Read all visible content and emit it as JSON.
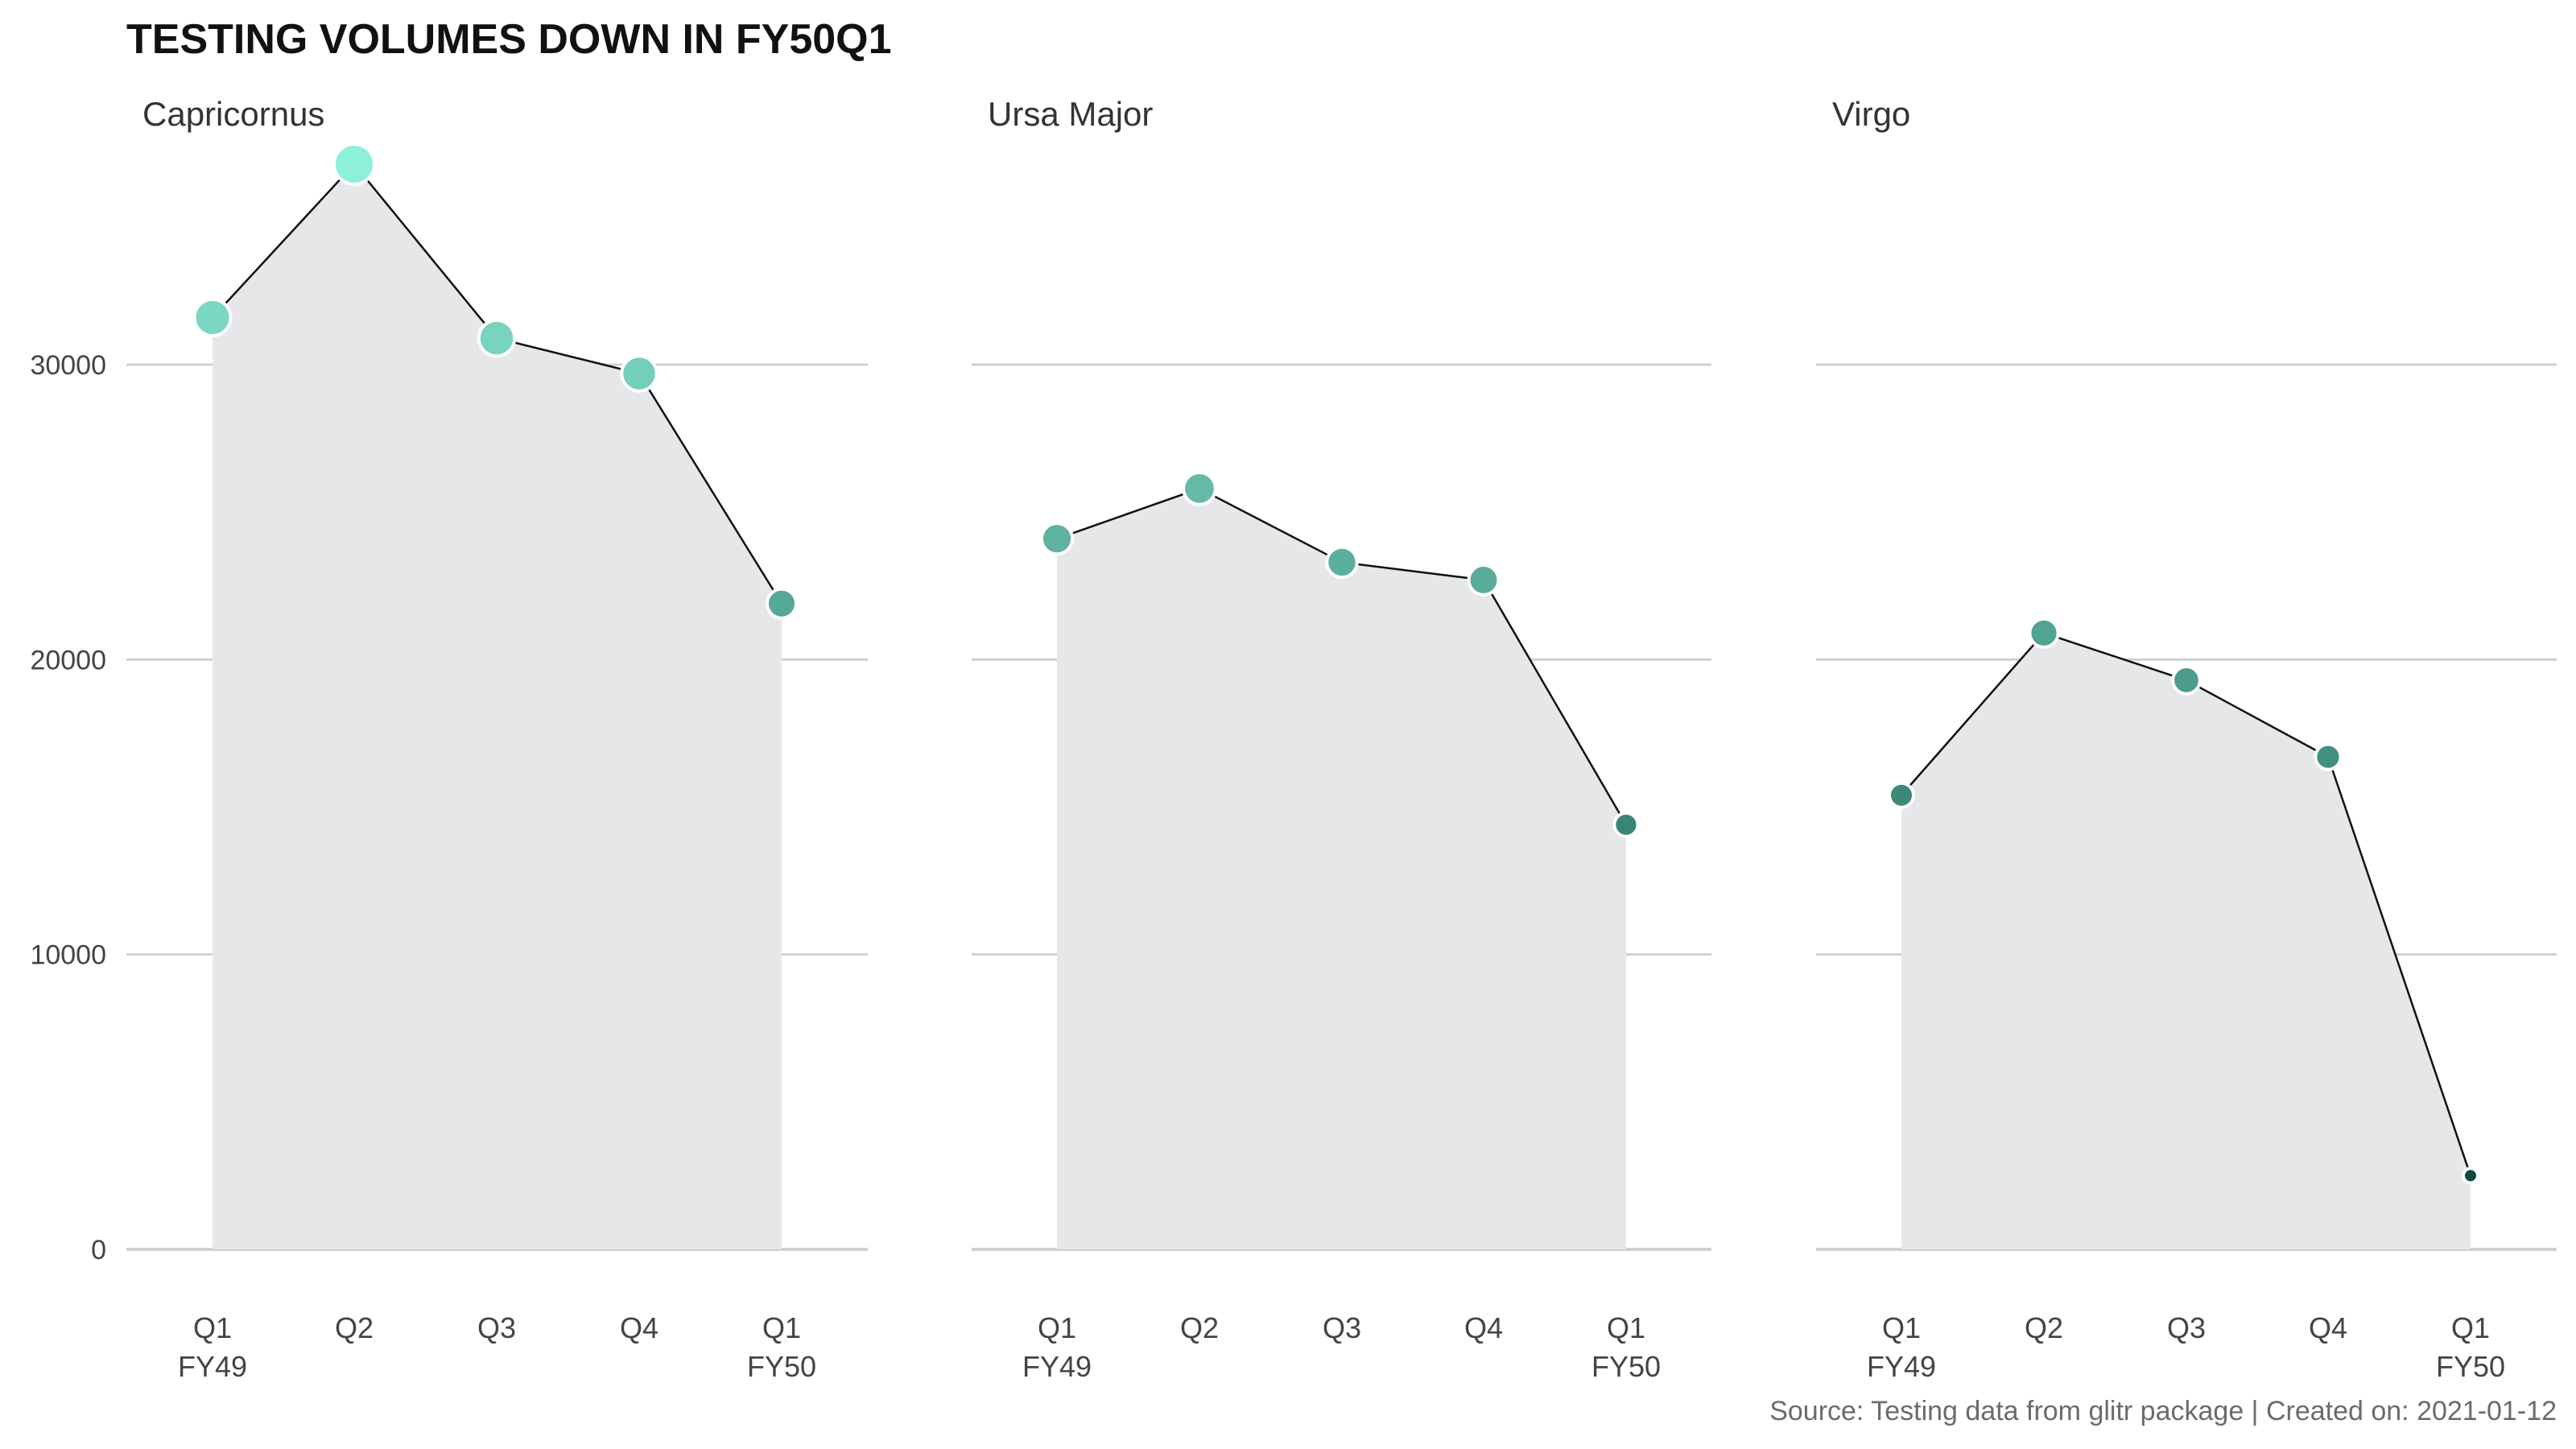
{
  "chart_data": {
    "type": "area",
    "title": "TESTING VOLUMES DOWN IN FY50Q1",
    "caption": "Source: Testing data from glitr package | Created on: 2021-01-12",
    "ylim": [
      0,
      38000
    ],
    "y_ticks": [
      0,
      10000,
      20000,
      30000
    ],
    "y_tick_labels": [
      "0",
      "10000",
      "20000",
      "30000"
    ],
    "x_tick_labels": [
      {
        "quarter": "Q1",
        "fiscal_year": "FY49"
      },
      {
        "quarter": "Q2",
        "fiscal_year": ""
      },
      {
        "quarter": "Q3",
        "fiscal_year": ""
      },
      {
        "quarter": "Q4",
        "fiscal_year": ""
      },
      {
        "quarter": "Q1",
        "fiscal_year": "FY50"
      }
    ],
    "grid": "horizontal",
    "area_color": "#e6e7e8",
    "line_color": "#111111",
    "marker_outline": "#ffffff",
    "color_scale": {
      "low": "#0b4a3f",
      "high": "#8ff0da"
    },
    "panels": [
      {
        "name": "Capricornus",
        "values": [
          31600,
          36800,
          30900,
          29700,
          21900
        ]
      },
      {
        "name": "Ursa Major",
        "values": [
          24100,
          25800,
          23300,
          22700,
          14400
        ]
      },
      {
        "name": "Virgo",
        "values": [
          15400,
          20900,
          19300,
          16700,
          2500
        ]
      }
    ]
  }
}
